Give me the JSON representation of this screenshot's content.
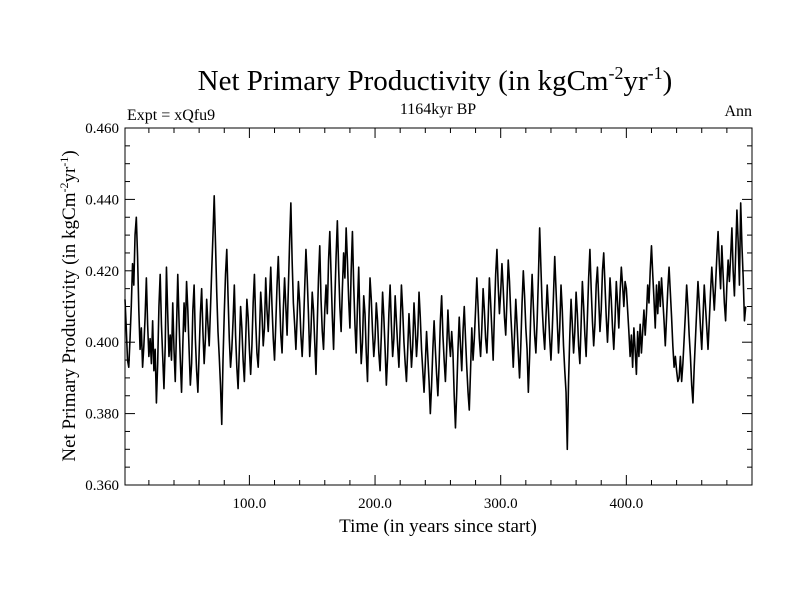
{
  "chart_data": {
    "type": "line",
    "title": "Net Primary Productivity (in kgCm",
    "title_sup1": "-2",
    "title_mid": "yr",
    "title_sup2": "-1",
    "title_end": ")",
    "subtitle_left": "Expt = xQfu9",
    "subtitle_center": "1164kyr BP",
    "subtitle_right": "Ann",
    "xlabel": "Time (in years since start)",
    "ylabel_main": "Net Primary Productivity (in kgCm",
    "ylabel_sup1": "-2",
    "ylabel_mid": "yr",
    "ylabel_sup2": "-1",
    "ylabel_end": ")",
    "xlim": [
      1,
      500
    ],
    "ylim": [
      0.36,
      0.46
    ],
    "x_ticks": [
      100,
      200,
      300,
      400
    ],
    "x_tick_labels": [
      "100.0",
      "200.0",
      "300.0",
      "400.0"
    ],
    "y_ticks": [
      0.36,
      0.38,
      0.4,
      0.42,
      0.44,
      0.46
    ],
    "y_tick_labels": [
      "0.360",
      "0.380",
      "0.400",
      "0.420",
      "0.440",
      "0.460"
    ],
    "grid": false,
    "line_color": "#000000",
    "series": [
      {
        "x_start": 1,
        "x_step": 1,
        "values": [
          0.412,
          0.404,
          0.395,
          0.393,
          0.401,
          0.41,
          0.422,
          0.416,
          0.43,
          0.435,
          0.424,
          0.409,
          0.398,
          0.404,
          0.393,
          0.399,
          0.407,
          0.418,
          0.405,
          0.396,
          0.401,
          0.394,
          0.406,
          0.392,
          0.398,
          0.383,
          0.394,
          0.41,
          0.419,
          0.405,
          0.396,
          0.387,
          0.399,
          0.421,
          0.408,
          0.396,
          0.402,
          0.395,
          0.411,
          0.398,
          0.389,
          0.404,
          0.419,
          0.406,
          0.395,
          0.386,
          0.399,
          0.411,
          0.403,
          0.417,
          0.409,
          0.398,
          0.388,
          0.394,
          0.409,
          0.416,
          0.401,
          0.392,
          0.386,
          0.397,
          0.408,
          0.415,
          0.403,
          0.394,
          0.401,
          0.412,
          0.405,
          0.399,
          0.409,
          0.42,
          0.43,
          0.441,
          0.428,
          0.414,
          0.403,
          0.396,
          0.388,
          0.377,
          0.395,
          0.408,
          0.419,
          0.426,
          0.413,
          0.401,
          0.393,
          0.398,
          0.406,
          0.416,
          0.402,
          0.393,
          0.387,
          0.398,
          0.41,
          0.404,
          0.395,
          0.389,
          0.4,
          0.412,
          0.407,
          0.398,
          0.391,
          0.399,
          0.411,
          0.419,
          0.406,
          0.397,
          0.393,
          0.402,
          0.414,
          0.408,
          0.399,
          0.404,
          0.418,
          0.409,
          0.403,
          0.412,
          0.421,
          0.41,
          0.401,
          0.395,
          0.405,
          0.416,
          0.424,
          0.413,
          0.402,
          0.397,
          0.409,
          0.418,
          0.41,
          0.402,
          0.415,
          0.428,
          0.439,
          0.423,
          0.411,
          0.405,
          0.398,
          0.407,
          0.417,
          0.411,
          0.402,
          0.396,
          0.404,
          0.415,
          0.426,
          0.418,
          0.408,
          0.396,
          0.403,
          0.414,
          0.409,
          0.4,
          0.391,
          0.405,
          0.418,
          0.427,
          0.412,
          0.403,
          0.398,
          0.409,
          0.416,
          0.408,
          0.423,
          0.431,
          0.419,
          0.407,
          0.398,
          0.412,
          0.424,
          0.434,
          0.421,
          0.41,
          0.403,
          0.415,
          0.425,
          0.418,
          0.432,
          0.423,
          0.412,
          0.404,
          0.42,
          0.431,
          0.416,
          0.405,
          0.397,
          0.41,
          0.421,
          0.405,
          0.394,
          0.4,
          0.413,
          0.408,
          0.397,
          0.389,
          0.405,
          0.418,
          0.412,
          0.403,
          0.396,
          0.401,
          0.411,
          0.406,
          0.397,
          0.392,
          0.402,
          0.414,
          0.407,
          0.398,
          0.388,
          0.396,
          0.408,
          0.416,
          0.405,
          0.396,
          0.401,
          0.413,
          0.406,
          0.399,
          0.393,
          0.404,
          0.416,
          0.409,
          0.4,
          0.394,
          0.389,
          0.398,
          0.408,
          0.401,
          0.393,
          0.399,
          0.411,
          0.404,
          0.396,
          0.402,
          0.414,
          0.407,
          0.398,
          0.392,
          0.386,
          0.394,
          0.403,
          0.396,
          0.389,
          0.38,
          0.388,
          0.398,
          0.406,
          0.398,
          0.391,
          0.385,
          0.394,
          0.406,
          0.413,
          0.402,
          0.395,
          0.389,
          0.398,
          0.409,
          0.401,
          0.396,
          0.403,
          0.397,
          0.385,
          0.376,
          0.386,
          0.398,
          0.407,
          0.399,
          0.392,
          0.403,
          0.41,
          0.401,
          0.393,
          0.386,
          0.381,
          0.392,
          0.404,
          0.395,
          0.401,
          0.409,
          0.418,
          0.41,
          0.401,
          0.396,
          0.404,
          0.415,
          0.409,
          0.401,
          0.397,
          0.406,
          0.418,
          0.411,
          0.403,
          0.395,
          0.408,
          0.419,
          0.426,
          0.416,
          0.408,
          0.414,
          0.422,
          0.415,
          0.407,
          0.402,
          0.412,
          0.423,
          0.417,
          0.408,
          0.401,
          0.393,
          0.402,
          0.412,
          0.405,
          0.397,
          0.39,
          0.399,
          0.411,
          0.42,
          0.413,
          0.404,
          0.398,
          0.386,
          0.396,
          0.409,
          0.419,
          0.41,
          0.402,
          0.397,
          0.406,
          0.418,
          0.432,
          0.421,
          0.41,
          0.403,
          0.398,
          0.407,
          0.416,
          0.409,
          0.401,
          0.395,
          0.403,
          0.413,
          0.424,
          0.415,
          0.406,
          0.397,
          0.404,
          0.416,
          0.409,
          0.399,
          0.392,
          0.386,
          0.37,
          0.389,
          0.402,
          0.412,
          0.405,
          0.397,
          0.403,
          0.414,
          0.408,
          0.399,
          0.394,
          0.405,
          0.417,
          0.41,
          0.402,
          0.396,
          0.407,
          0.418,
          0.426,
          0.415,
          0.406,
          0.399,
          0.405,
          0.416,
          0.421,
          0.412,
          0.403,
          0.409,
          0.42,
          0.425,
          0.416,
          0.407,
          0.4,
          0.408,
          0.418,
          0.412,
          0.404,
          0.398,
          0.406,
          0.417,
          0.411,
          0.404,
          0.414,
          0.421,
          0.416,
          0.41,
          0.417,
          0.415,
          0.409,
          0.403,
          0.396,
          0.402,
          0.393,
          0.404,
          0.398,
          0.391,
          0.403,
          0.396,
          0.405,
          0.397,
          0.403,
          0.409,
          0.402,
          0.408,
          0.416,
          0.411,
          0.42,
          0.427,
          0.419,
          0.412,
          0.404,
          0.416,
          0.408,
          0.417,
          0.41,
          0.418,
          0.412,
          0.406,
          0.399,
          0.407,
          0.415,
          0.421,
          0.414,
          0.407,
          0.399,
          0.393,
          0.396,
          0.392,
          0.389,
          0.39,
          0.396,
          0.389,
          0.394,
          0.401,
          0.408,
          0.416,
          0.41,
          0.402,
          0.396,
          0.388,
          0.383,
          0.393,
          0.401,
          0.409,
          0.417,
          0.411,
          0.404,
          0.398,
          0.407,
          0.416,
          0.41,
          0.404,
          0.398,
          0.406,
          0.414,
          0.421,
          0.415,
          0.409,
          0.416,
          0.424,
          0.431,
          0.422,
          0.415,
          0.427,
          0.419,
          0.411,
          0.406,
          0.416,
          0.423,
          0.417,
          0.424,
          0.432,
          0.42,
          0.413,
          0.425,
          0.437,
          0.428,
          0.416,
          0.439,
          0.427,
          0.418,
          0.406,
          0.41
        ]
      }
    ]
  }
}
